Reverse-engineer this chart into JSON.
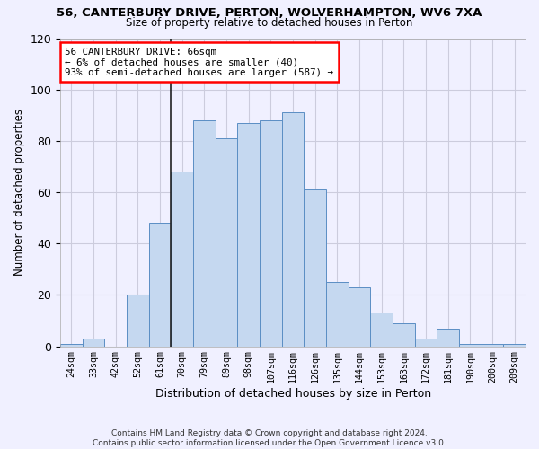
{
  "title_main": "56, CANTERBURY DRIVE, PERTON, WOLVERHAMPTON, WV6 7XA",
  "title_sub": "Size of property relative to detached houses in Perton",
  "xlabel": "Distribution of detached houses by size in Perton",
  "ylabel": "Number of detached properties",
  "categories": [
    "24sqm",
    "33sqm",
    "42sqm",
    "52sqm",
    "61sqm",
    "70sqm",
    "79sqm",
    "89sqm",
    "98sqm",
    "107sqm",
    "116sqm",
    "126sqm",
    "135sqm",
    "144sqm",
    "153sqm",
    "163sqm",
    "172sqm",
    "181sqm",
    "190sqm",
    "200sqm",
    "209sqm"
  ],
  "values": [
    1,
    3,
    0,
    20,
    48,
    68,
    88,
    81,
    87,
    88,
    91,
    61,
    25,
    23,
    13,
    9,
    3,
    7,
    1,
    1,
    1
  ],
  "bar_color": "#c5d8f0",
  "bar_edge_color": "#5b8ec4",
  "annotation_line_index": 4.5,
  "annotation_text_line1": "56 CANTERBURY DRIVE: 66sqm",
  "annotation_text_line2": "← 6% of detached houses are smaller (40)",
  "annotation_text_line3": "93% of semi-detached houses are larger (587) →",
  "annotation_box_color": "white",
  "annotation_box_edge_color": "red",
  "ylim": [
    0,
    120
  ],
  "yticks": [
    0,
    20,
    40,
    60,
    80,
    100,
    120
  ],
  "footer_line1": "Contains HM Land Registry data © Crown copyright and database right 2024.",
  "footer_line2": "Contains public sector information licensed under the Open Government Licence v3.0.",
  "background_color": "#f0f0ff",
  "grid_color": "#ccccdd",
  "vline_color": "#222222"
}
